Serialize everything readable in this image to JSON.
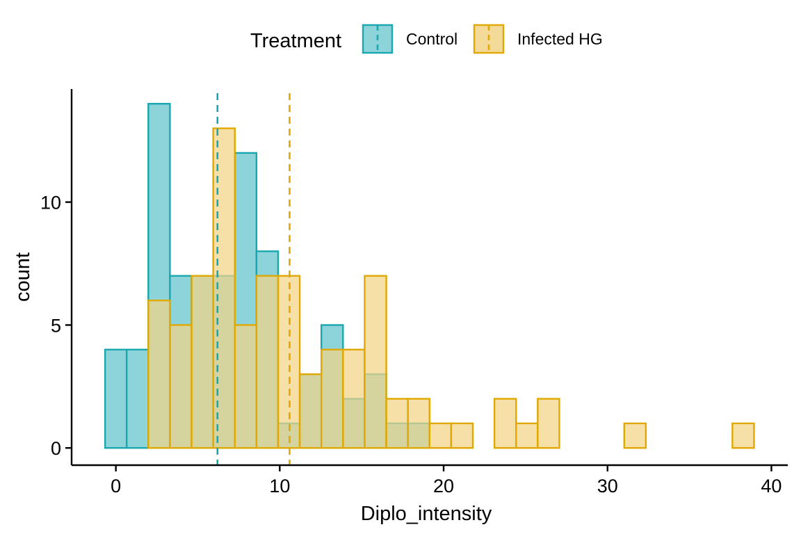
{
  "chart_data": {
    "type": "histogram",
    "xlabel": "Diplo_intensity",
    "ylabel": "count",
    "xlim": [
      -2.7,
      41.0
    ],
    "ylim": [
      -0.7,
      14.6
    ],
    "x_ticks": [
      0,
      10,
      20,
      30,
      40
    ],
    "y_ticks": [
      0,
      5,
      10
    ],
    "grid": false,
    "legend": {
      "title": "Treatment",
      "position": "top"
    },
    "bin_start": -0.66,
    "bin_width": 1.32,
    "series": [
      {
        "name": "Control",
        "color": "#1aa7b0",
        "fill": "#8cd3da",
        "mean": 6.2,
        "counts": [
          4,
          4,
          14,
          7,
          7,
          7,
          12,
          8,
          1,
          3,
          5,
          2,
          3,
          1,
          1,
          0,
          0,
          0,
          0,
          0,
          0,
          0,
          0,
          0,
          0,
          0,
          0,
          0,
          0,
          0
        ]
      },
      {
        "name": "Infected HG",
        "color": "#e0a800",
        "fill": "#f2d486",
        "mean": 10.6,
        "counts": [
          0,
          0,
          6,
          5,
          7,
          13,
          5,
          7,
          7,
          3,
          4,
          4,
          7,
          2,
          2,
          1,
          1,
          0,
          2,
          1,
          2,
          0,
          0,
          0,
          1,
          0,
          0,
          0,
          0,
          1
        ]
      }
    ]
  }
}
